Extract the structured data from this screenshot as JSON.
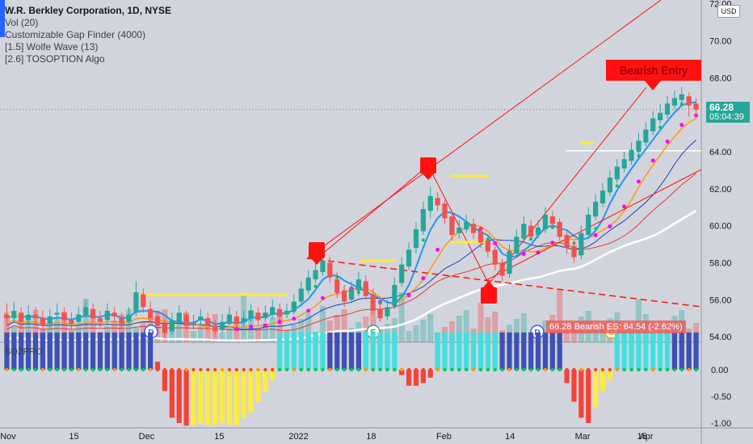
{
  "legend": {
    "title": "W.R. Berkley Corporation, 1D, NYSE",
    "lines": [
      "Vol (20)",
      "Customizable Gap Finder (4000)",
      "[1.5] Wolfe Wave (13)",
      "[2.6] TOSOPTION Algo"
    ]
  },
  "currency_badge": "USD",
  "oscillator_label": "SQZPRO",
  "last_price": {
    "value": "66.28",
    "countdown": "05:04:39",
    "color": "#26a69a"
  },
  "bearish_entry_label": "Bearish Entry",
  "bearish_status": {
    "text": "66.28 Bearish ES: 64.54",
    "change": "(-2.62%)"
  },
  "event_markers": [
    "D",
    "E",
    "D",
    "S"
  ],
  "colors": {
    "background": "#d1d4dc",
    "up": "#26a69a",
    "down": "#ef5350",
    "signal": "#ff1111",
    "ema_fast": "#2196f3",
    "ema_dots": "#00c853",
    "dots_magenta": "#ff00ff",
    "sma_white": "#ffffff",
    "gap_yellow": "#ffeb3b"
  },
  "chart_data": [
    {
      "type": "candlestick",
      "title": "W.R. Berkley Corporation, 1D, NYSE",
      "x_ticks": [
        "Nov",
        "15",
        "Dec",
        "15",
        "2022",
        "18",
        "Feb",
        "14",
        "Mar",
        "15",
        "Apr"
      ],
      "y_ticks": [
        54.0,
        56.0,
        58.0,
        60.0,
        62.0,
        64.0,
        66.0,
        68.0,
        70.0,
        72.0
      ],
      "ylim": [
        53.7,
        72.2
      ],
      "last": 66.28,
      "close": [
        55.0,
        55.4,
        54.8,
        55.2,
        55.0,
        54.6,
        55.1,
        55.3,
        54.9,
        54.7,
        55.2,
        55.6,
        55.0,
        54.8,
        55.4,
        55.1,
        54.7,
        55.2,
        56.4,
        55.6,
        55.0,
        54.6,
        54.2,
        54.9,
        55.3,
        54.6,
        54.8,
        55.1,
        54.6,
        54.3,
        54.8,
        55.2,
        54.7,
        55.0,
        55.4,
        54.9,
        55.3,
        55.6,
        55.1,
        55.4,
        55.9,
        56.6,
        57.2,
        57.6,
        58.1,
        57.2,
        56.4,
        55.9,
        56.6,
        57.1,
        56.2,
        55.4,
        55.0,
        55.6,
        56.8,
        57.9,
        58.7,
        59.8,
        60.9,
        61.6,
        61.1,
        60.4,
        59.5,
        59.9,
        60.2,
        59.6,
        59.1,
        58.6,
        57.9,
        57.3,
        58.6,
        59.4,
        60.1,
        59.4,
        59.9,
        60.6,
        60.1,
        59.4,
        58.8,
        58.3,
        59.6,
        60.6,
        61.3,
        61.9,
        62.6,
        63.2,
        63.6,
        64.1,
        64.6,
        65.2,
        65.8,
        66.1,
        66.6,
        66.9,
        67.1,
        66.5,
        66.28
      ],
      "open": [
        55.2,
        55.0,
        55.3,
        54.9,
        55.2,
        55.0,
        54.7,
        55.2,
        55.3,
        54.9,
        54.8,
        55.1,
        55.5,
        55.0,
        54.9,
        55.3,
        55.0,
        54.8,
        55.3,
        56.3,
        55.5,
        55.1,
        54.7,
        54.3,
        54.8,
        55.2,
        54.7,
        54.9,
        55.0,
        54.6,
        54.4,
        54.7,
        55.1,
        54.8,
        55.0,
        55.3,
        55.0,
        55.2,
        55.5,
        55.2,
        55.4,
        55.9,
        56.5,
        57.1,
        57.5,
        58.0,
        57.1,
        56.5,
        56.0,
        56.5,
        57.0,
        56.3,
        55.5,
        55.1,
        55.7,
        56.9,
        57.8,
        58.8,
        59.7,
        60.8,
        61.5,
        61.2,
        60.5,
        59.6,
        59.8,
        60.1,
        59.7,
        59.2,
        58.7,
        58.0,
        57.4,
        58.5,
        59.3,
        60.0,
        59.5,
        59.8,
        60.5,
        60.2,
        59.5,
        58.9,
        58.4,
        59.5,
        60.5,
        61.2,
        61.8,
        62.5,
        63.1,
        63.5,
        64.0,
        64.5,
        65.1,
        65.7,
        66.0,
        66.5,
        66.8,
        67.0,
        66.6
      ],
      "high": [
        55.8,
        55.9,
        55.6,
        55.7,
        55.6,
        55.4,
        55.5,
        55.8,
        55.6,
        55.3,
        55.6,
        56.0,
        55.8,
        55.4,
        55.8,
        55.6,
        55.3,
        55.6,
        57.0,
        56.6,
        55.9,
        55.4,
        54.9,
        55.3,
        55.7,
        55.4,
        55.2,
        55.5,
        55.3,
        54.9,
        55.2,
        55.6,
        55.4,
        55.4,
        55.8,
        55.6,
        55.7,
        56.0,
        55.8,
        55.8,
        56.3,
        57.0,
        57.6,
        58.0,
        58.6,
        58.3,
        57.5,
        56.8,
        57.0,
        57.5,
        57.3,
        56.6,
        55.8,
        56.0,
        57.2,
        58.3,
        59.1,
        60.2,
        61.3,
        62.1,
        61.8,
        61.4,
        60.8,
        60.3,
        60.6,
        60.4,
        59.9,
        59.5,
        58.9,
        58.2,
        59.0,
        59.8,
        60.5,
        60.3,
        60.3,
        61.0,
        60.8,
        60.4,
        59.7,
        59.2,
        60.0,
        61.0,
        61.7,
        62.3,
        63.0,
        63.6,
        64.0,
        64.5,
        65.0,
        65.6,
        66.2,
        66.6,
        67.0,
        67.3,
        67.5,
        67.2,
        66.9
      ],
      "low": [
        54.6,
        54.8,
        54.5,
        54.7,
        54.7,
        54.3,
        54.5,
        54.9,
        54.6,
        54.4,
        54.6,
        55.0,
        54.8,
        54.5,
        54.7,
        54.8,
        54.4,
        54.6,
        55.1,
        55.3,
        54.8,
        54.3,
        53.9,
        54.1,
        54.6,
        54.4,
        54.4,
        54.7,
        54.3,
        54.0,
        54.2,
        54.6,
        54.4,
        54.5,
        54.8,
        54.6,
        54.8,
        55.0,
        54.9,
        55.0,
        55.2,
        55.7,
        56.3,
        56.9,
        57.3,
        56.9,
        56.1,
        55.6,
        55.8,
        56.2,
        56.0,
        55.2,
        54.8,
        54.9,
        55.5,
        56.7,
        57.6,
        58.5,
        59.5,
        60.4,
        60.8,
        60.1,
        59.2,
        59.3,
        59.6,
        59.3,
        58.8,
        58.3,
        57.6,
        57.0,
        57.2,
        58.3,
        59.1,
        59.2,
        59.3,
        59.6,
        59.9,
        59.2,
        58.5,
        58.0,
        58.2,
        59.3,
        60.3,
        61.0,
        61.6,
        62.3,
        62.9,
        63.3,
        63.8,
        64.3,
        64.9,
        65.5,
        65.8,
        66.3,
        66.5,
        65.9,
        65.8
      ]
    },
    {
      "type": "bar",
      "title": "SQZPRO",
      "y_ticks": [
        0.0,
        -0.5,
        -1.0
      ],
      "ylim": [
        -1.05,
        0.78
      ],
      "values": [
        0.7,
        0.7,
        0.7,
        0.7,
        0.7,
        0.7,
        0.7,
        0.7,
        0.7,
        0.7,
        0.7,
        0.7,
        0.7,
        0.7,
        0.7,
        0.7,
        0.7,
        0.7,
        0.7,
        0.7,
        0.7,
        0.15,
        -0.4,
        -0.9,
        -1.0,
        -1.05,
        -1.05,
        -1.0,
        -1.05,
        -1.05,
        -1.0,
        -1.05,
        -1.05,
        -0.9,
        -0.8,
        -0.6,
        -0.4,
        -0.2,
        0.7,
        0.7,
        0.7,
        0.7,
        0.7,
        0.7,
        0.7,
        0.7,
        0.7,
        0.7,
        0.7,
        0.7,
        0.7,
        0.7,
        0.7,
        0.7,
        0.7,
        -0.1,
        -0.3,
        -0.3,
        -0.25,
        -0.15,
        0.7,
        0.7,
        0.7,
        0.7,
        0.7,
        0.7,
        0.7,
        0.7,
        0.7,
        0.7,
        0.7,
        0.7,
        0.7,
        0.7,
        0.7,
        0.7,
        0.7,
        0.7,
        -0.25,
        -0.6,
        -0.9,
        -1.0,
        -0.7,
        -0.4,
        -0.2,
        0.7,
        0.7,
        0.7,
        0.7,
        0.7,
        0.7,
        0.7,
        0.7,
        0.7,
        0.7,
        0.7,
        0.7
      ],
      "bar_colors": [
        "#3f51b5",
        "#3f51b5",
        "#3f51b5",
        "#3f51b5",
        "#3f51b5",
        "#3f51b5",
        "#3f51b5",
        "#3f51b5",
        "#3f51b5",
        "#3f51b5",
        "#3f51b5",
        "#3f51b5",
        "#3f51b5",
        "#3f51b5",
        "#3f51b5",
        "#3f51b5",
        "#3f51b5",
        "#3f51b5",
        "#3f51b5",
        "#3f51b5",
        "#3f51b5",
        "#f44336",
        "#f44336",
        "#f44336",
        "#f44336",
        "#f44336",
        "#ffeb3b",
        "#ffeb3b",
        "#ffeb3b",
        "#ffeb3b",
        "#ffeb3b",
        "#ffeb3b",
        "#ffeb3b",
        "#ffeb3b",
        "#ffeb3b",
        "#ffeb3b",
        "#ffeb3b",
        "#ffeb3b",
        "#40e0e0",
        "#40e0e0",
        "#40e0e0",
        "#40e0e0",
        "#40e0e0",
        "#40e0e0",
        "#40e0e0",
        "#3f51b5",
        "#3f51b5",
        "#3f51b5",
        "#3f51b5",
        "#3f51b5",
        "#40e0e0",
        "#40e0e0",
        "#40e0e0",
        "#40e0e0",
        "#40e0e0",
        "#f44336",
        "#f44336",
        "#f44336",
        "#f44336",
        "#f44336",
        "#40e0e0",
        "#40e0e0",
        "#40e0e0",
        "#40e0e0",
        "#40e0e0",
        "#40e0e0",
        "#40e0e0",
        "#40e0e0",
        "#40e0e0",
        "#3f51b5",
        "#3f51b5",
        "#3f51b5",
        "#3f51b5",
        "#3f51b5",
        "#3f51b5",
        "#3f51b5",
        "#3f51b5",
        "#3f51b5",
        "#f44336",
        "#f44336",
        "#f44336",
        "#f44336",
        "#ffeb3b",
        "#ffeb3b",
        "#ffeb3b",
        "#40e0e0",
        "#40e0e0",
        "#40e0e0",
        "#40e0e0",
        "#40e0e0",
        "#40e0e0",
        "#40e0e0",
        "#40e0e0",
        "#3f51b5",
        "#3f51b5",
        "#3f51b5",
        "#3f51b5"
      ]
    }
  ]
}
